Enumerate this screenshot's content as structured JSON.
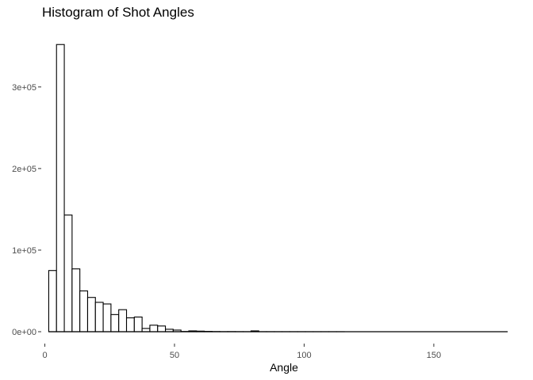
{
  "chart_data": {
    "type": "bar",
    "title": "Histogram of Shot Angles",
    "xlabel": "Angle",
    "ylabel": "",
    "binwidth": 3,
    "bin_start": 1.5,
    "values": [
      75000,
      352000,
      143000,
      77000,
      50000,
      42000,
      36000,
      34000,
      21000,
      27000,
      17000,
      18000,
      4000,
      8000,
      7000,
      3000,
      2000,
      300,
      1000,
      700,
      400,
      200,
      100,
      150,
      80,
      60,
      1000,
      50,
      40,
      30,
      20,
      20,
      15,
      12,
      10,
      8,
      6,
      5,
      4,
      3,
      3,
      2,
      2,
      2,
      1,
      1,
      1,
      1,
      1,
      1,
      1,
      1,
      1,
      1,
      1,
      1,
      1,
      1,
      1
    ],
    "xlim": [
      -2,
      180
    ],
    "ylim": [
      0,
      360000
    ],
    "x_ticks": [
      0,
      50,
      100,
      150
    ],
    "y_ticks": [
      0,
      100000,
      200000,
      300000
    ],
    "x_tick_labels": [
      "0",
      "50",
      "100",
      "150"
    ],
    "y_tick_labels": [
      "0e+00",
      "1e+05",
      "2e+05",
      "3e+05"
    ],
    "bar_fill": "#ffffff",
    "bar_stroke": "#000000",
    "grid": false
  }
}
